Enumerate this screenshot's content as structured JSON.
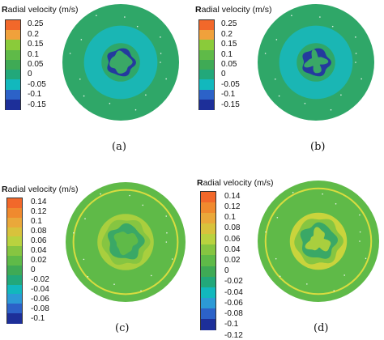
{
  "legend_prefix": "R",
  "legend_rest": "adial velocity (m/s)",
  "panels": [
    {
      "caption": "(a)",
      "colors": [
        "#f2682a",
        "#f0a13b",
        "#8acb3a",
        "#5fba48",
        "#3faa55",
        "#22a87a",
        "#12b8bd",
        "#2c62c8",
        "#1d2f99"
      ],
      "ticks": [
        "0.25",
        "0.2",
        "0.15",
        "0.1",
        "0.05",
        "0",
        "-0.05",
        "-0.1",
        "-0.15"
      ],
      "outer_color": "#2fa768",
      "mid_color": "#1ab6b4",
      "inner_color": "#2fa768",
      "core_ring_color": "#243a9e",
      "core_color": "#3aa866"
    },
    {
      "caption": "(b)",
      "colors": [
        "#f2682a",
        "#f0a13b",
        "#8acb3a",
        "#5fba48",
        "#3faa55",
        "#22a87a",
        "#12b8bd",
        "#2c62c8",
        "#1d2f99"
      ],
      "ticks": [
        "0.25",
        "0.2",
        "0.15",
        "0.1",
        "0.05",
        "0",
        "-0.05",
        "-0.1",
        "-0.15"
      ],
      "outer_color": "#2fa768",
      "mid_color": "#1ab6b4",
      "inner_color": "#2fa768",
      "core_ring_color": "#243a9e",
      "core_color": "#3aa866"
    },
    {
      "caption": "(c)",
      "colors": [
        "#f2682a",
        "#f08a2e",
        "#eaa83a",
        "#d8c23c",
        "#b9d23f",
        "#86c541",
        "#5fba48",
        "#3faa55",
        "#22a87a",
        "#12b8bd",
        "#2c9ad6",
        "#2c62c8",
        "#1d2f99"
      ],
      "ticks": [
        "0.14",
        "0.12",
        "0.1",
        "0.08",
        "0.06",
        "0.04",
        "0.02",
        "0",
        "-0.02",
        "-0.04",
        "-0.06",
        "-0.08",
        "-0.1"
      ],
      "outer_color": "#5fba48",
      "mid_color": "#a9cf3e",
      "inner_color": "#86c541",
      "core_ring_color": "#3aa866",
      "core_color": "#5fba48"
    },
    {
      "caption": "(d)",
      "colors": [
        "#f2682a",
        "#f08a2e",
        "#eaa83a",
        "#d8c23c",
        "#b9d23f",
        "#86c541",
        "#5fba48",
        "#3faa55",
        "#22a87a",
        "#12b8bd",
        "#2c9ad6",
        "#2c62c8",
        "#1d2f99"
      ],
      "ticks": [
        "0.14",
        "0.12",
        "0.1",
        "0.08",
        "0.06",
        "0.04",
        "0.02",
        "0",
        "-0.02",
        "-0.04",
        "-0.06",
        "-0.08",
        "-0.1",
        "-0.12"
      ],
      "outer_color": "#5fba48",
      "mid_color": "#c9d43c",
      "inner_color": "#86c541",
      "core_ring_color": "#3aa866",
      "core_color": "#a9cf3e"
    }
  ]
}
